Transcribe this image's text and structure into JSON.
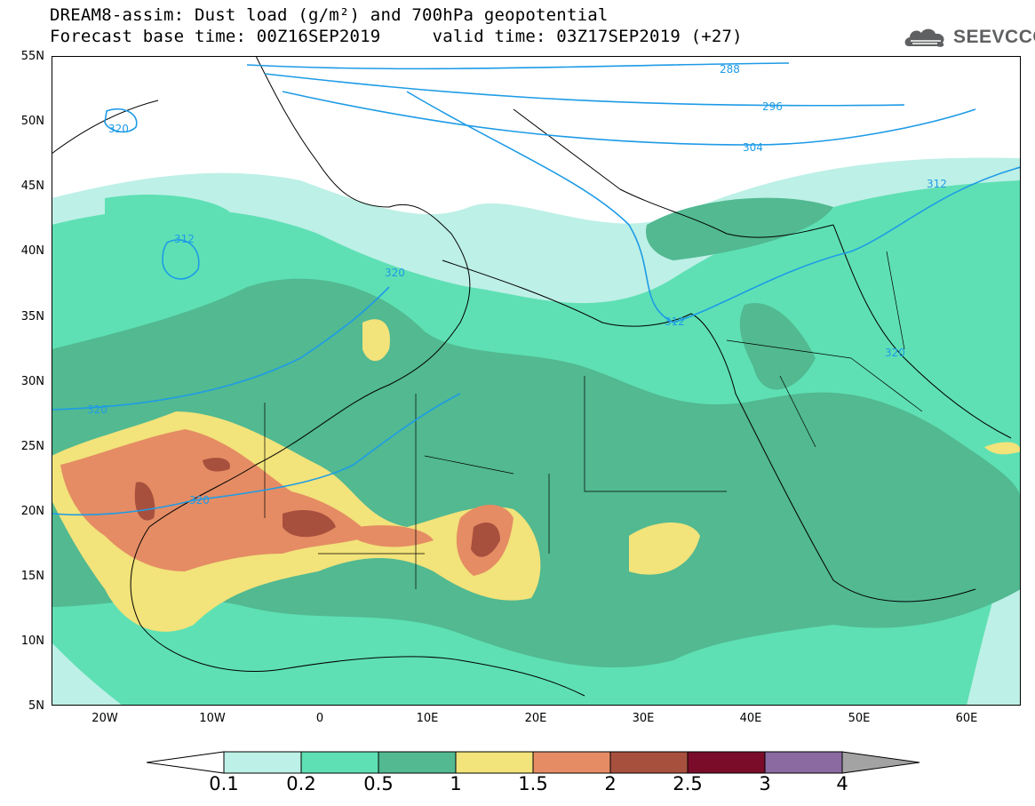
{
  "title": {
    "line1": "DREAM8-assim: Dust load (g/m²) and 700hPa geopotential",
    "line2": "Forecast base time: 00Z16SEP2019     valid time: 03Z17SEP2019 (+27)"
  },
  "logo": {
    "text": "SEEVCCC",
    "icon": "cloud-logo-icon"
  },
  "lat_labels": [
    "55N",
    "50N",
    "45N",
    "40N",
    "35N",
    "30N",
    "25N",
    "20N",
    "15N",
    "10N",
    "5N"
  ],
  "lon_labels": [
    "20W",
    "10W",
    "0",
    "10E",
    "20E",
    "30E",
    "40E",
    "50E",
    "60E"
  ],
  "contour_labels": [
    "288",
    "296",
    "304",
    "312",
    "312",
    "312",
    "320",
    "320",
    "320",
    "320",
    "320"
  ],
  "colorbar": {
    "labels": [
      "0.1",
      "0.2",
      "0.5",
      "1",
      "1.5",
      "2",
      "2.5",
      "3",
      "4"
    ],
    "colors": [
      "#ffffff",
      "#bdf0e6",
      "#5ee0b4",
      "#52b991",
      "#f2e37a",
      "#e58c64",
      "#a8503e",
      "#7a0c2a",
      "#8a6aa0",
      "#a3a3a3"
    ]
  },
  "map": {
    "extent_lon": [
      -25,
      65
    ],
    "extent_lat": [
      5,
      55
    ],
    "contour_color": "#1e9be6"
  }
}
